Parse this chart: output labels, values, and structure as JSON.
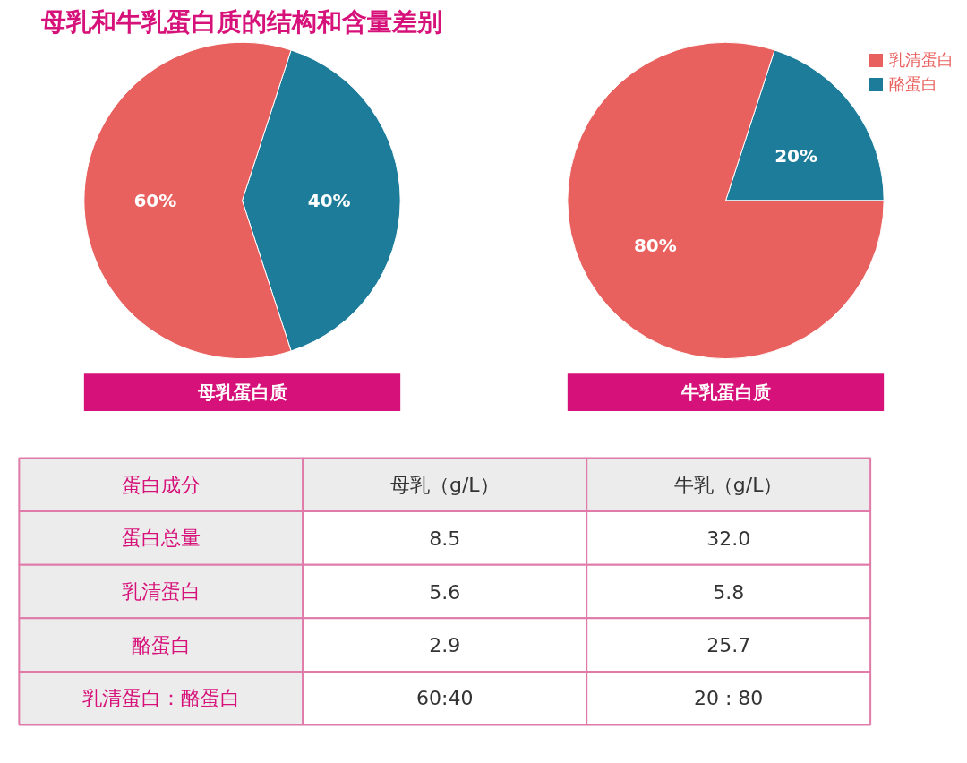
{
  "chart_data": [
    {
      "type": "pie",
      "title": "母乳和牛乳蛋白质的结构和含量差别",
      "xlabel": "母乳蛋白质",
      "categories": [
        null,
        null
      ],
      "values": [
        60,
        40
      ],
      "colors": [
        "#e8615f",
        "#1c7c99"
      ],
      "value_labels": [
        "60%",
        "40%"
      ],
      "legend": false
    },
    {
      "type": "pie",
      "xlabel": "牛乳蛋白质",
      "categories": [
        "乳清蛋白",
        "酪蛋白"
      ],
      "values": [
        80,
        20
      ],
      "colors": [
        "#e8615f",
        "#1c7c99"
      ],
      "value_labels": [
        "80%",
        "20%"
      ],
      "legend": "top right"
    },
    {
      "type": "other",
      "annotations": [
        "蛋白成分",
        "母乳（g/L）",
        "牛乳（g/L）",
        "蛋白总量",
        "8.5",
        "32.0",
        "乳清蛋白",
        "5.6",
        "5.8",
        "酪蛋白",
        "2.9",
        "25.7",
        "乳清蛋白：酪蛋白",
        "60:40",
        "20 : 80"
      ]
    }
  ]
}
